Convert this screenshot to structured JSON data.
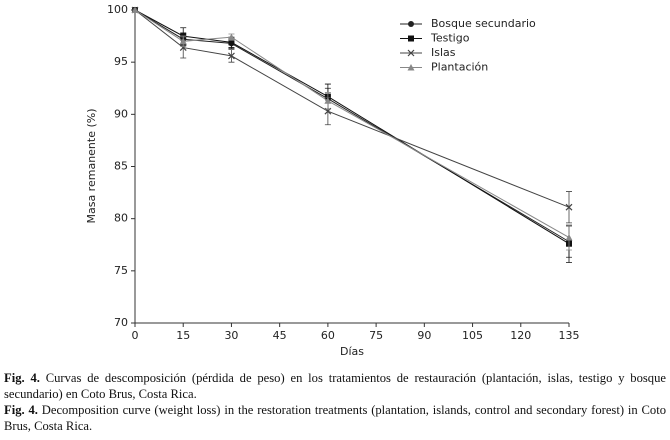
{
  "chart_data": {
    "type": "line",
    "x": [
      0,
      15,
      30,
      60,
      135
    ],
    "xlabel": "Días",
    "ylabel": "Masa remanente (%)",
    "xlim": [
      0,
      135
    ],
    "xticks": [
      0,
      15,
      30,
      45,
      60,
      75,
      90,
      105,
      120,
      135
    ],
    "ylim": [
      70,
      100
    ],
    "yticks": [
      70,
      75,
      80,
      85,
      90,
      95,
      100
    ],
    "legend": "upper right",
    "series": [
      {
        "name": "Bosque secundario",
        "marker": "circle",
        "color": "#222222",
        "values": [
          100,
          97.2,
          96.8,
          91.5,
          77.8
        ],
        "errors": [
          0,
          0.6,
          0.5,
          1.0,
          1.5
        ]
      },
      {
        "name": "Testigo",
        "marker": "square",
        "color": "#111111",
        "values": [
          100,
          97.5,
          96.9,
          91.7,
          77.6
        ],
        "errors": [
          0,
          0.8,
          0.5,
          1.2,
          1.8
        ]
      },
      {
        "name": "Islas",
        "marker": "x",
        "color": "#444444",
        "values": [
          100,
          96.4,
          95.6,
          90.3,
          81.1
        ],
        "errors": [
          0,
          1.0,
          0.6,
          1.3,
          1.5
        ]
      },
      {
        "name": "Plantación",
        "marker": "triangle",
        "color": "#888888",
        "values": [
          100,
          97.0,
          97.4,
          91.3,
          78.2
        ],
        "errors": [
          0,
          0.5,
          0.3,
          0.8,
          1.2
        ]
      }
    ]
  },
  "caption": [
    {
      "label": "Fig. 4.",
      "text": "Curvas de descomposición (pérdida de peso) en los tratamientos de restauración (plantación, islas, testigo y bosque secundario) en Coto Brus, Costa Rica."
    },
    {
      "label": "Fig. 4.",
      "text": "Decomposition curve (weight loss) in the restoration treatments (plantation, islands, control and secondary forest) in Coto Brus, Costa Rica."
    }
  ]
}
